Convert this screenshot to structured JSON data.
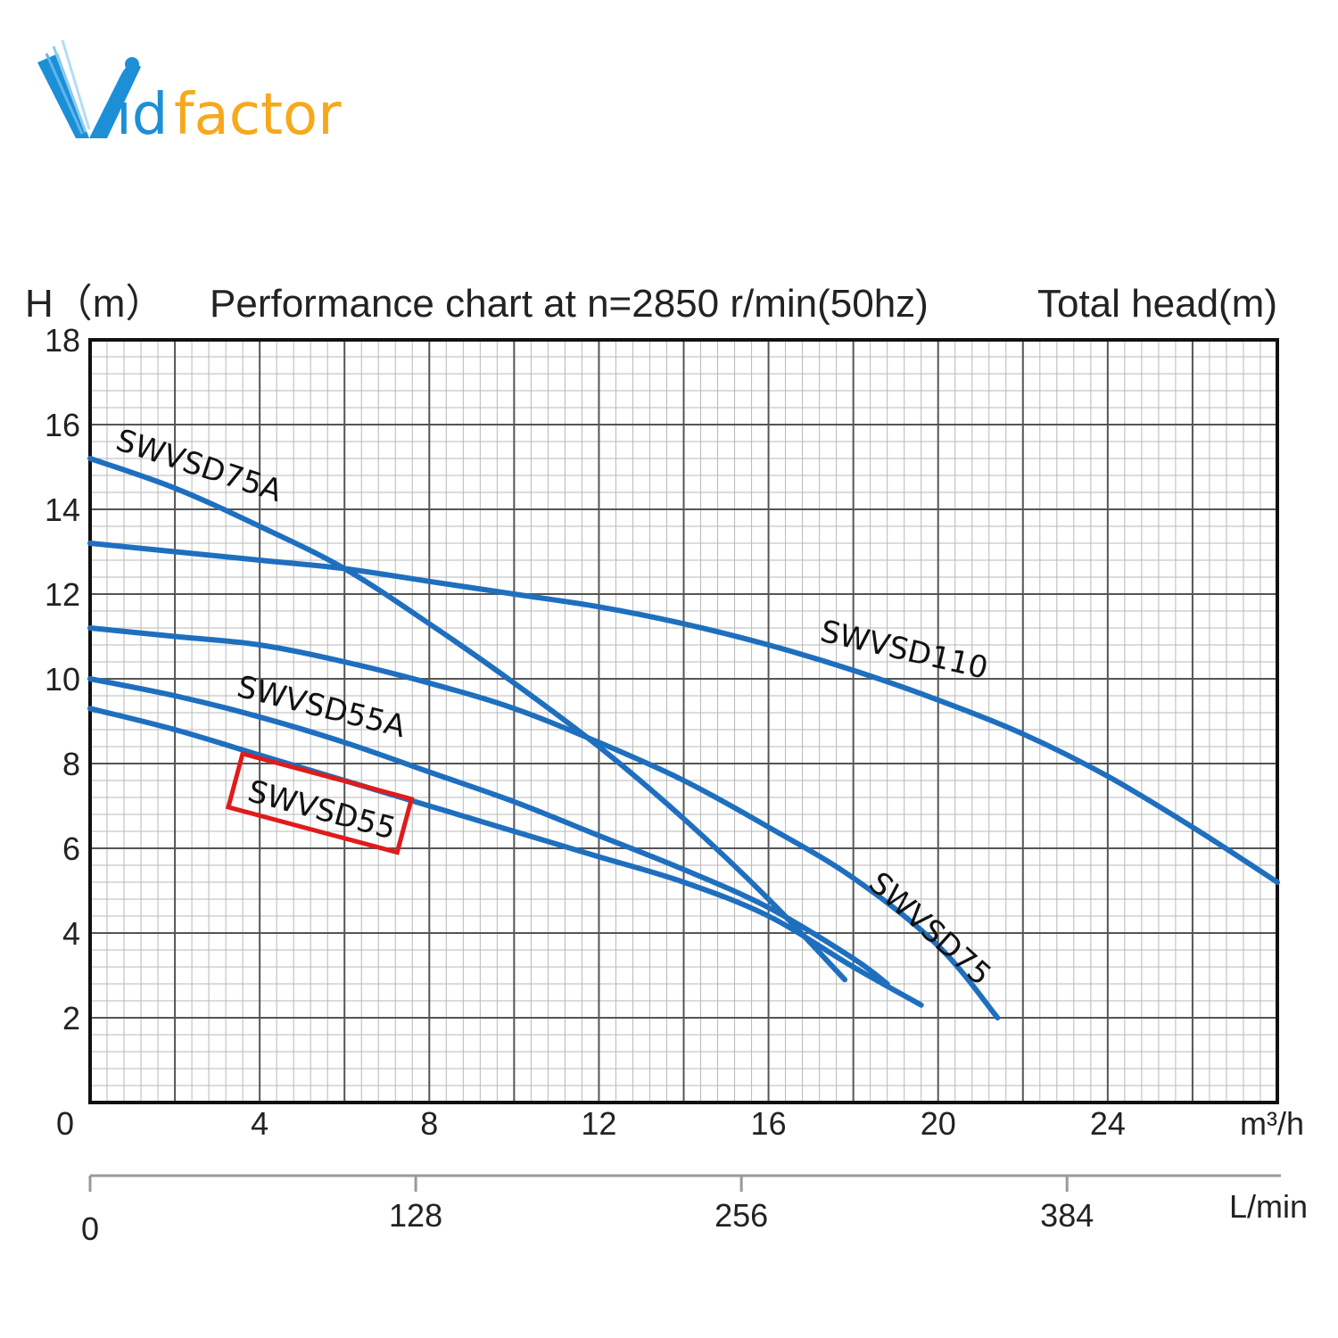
{
  "brand": {
    "logo_text_a": "id",
    "logo_text_b": "factor",
    "primary_color": "#1c8fd6",
    "accent_color": "#f7a81b"
  },
  "chart_data": {
    "type": "line",
    "title": "Performance chart at n=2850 r/min(50hz)",
    "ylabel": "H（m）",
    "ylabel_right": "Total head(m)",
    "xlabel": "m³/h",
    "xlabel_secondary": "L/min",
    "xlim": [
      0,
      28
    ],
    "ylim": [
      0,
      18
    ],
    "x_ticks": [
      0,
      4,
      8,
      12,
      16,
      20,
      24
    ],
    "y_ticks": [
      0,
      2,
      4,
      6,
      8,
      10,
      12,
      14,
      16,
      18
    ],
    "x_ticks_secondary": [
      0,
      128,
      256,
      384
    ],
    "grid": true,
    "line_color": "#1f6fbf",
    "highlight": {
      "series": "SWVSD55",
      "color": "#e01b1b"
    },
    "series": [
      {
        "name": "SWVSD75A",
        "x": [
          0,
          2,
          4,
          6,
          8,
          10,
          12,
          14,
          16,
          17.8
        ],
        "y": [
          15.2,
          14.5,
          13.6,
          12.6,
          11.3,
          9.9,
          8.4,
          6.7,
          4.8,
          2.9
        ]
      },
      {
        "name": "SWVSD110",
        "x": [
          0,
          2,
          4,
          6,
          8,
          10,
          12,
          14,
          16,
          18,
          20,
          22,
          24,
          26,
          28
        ],
        "y": [
          13.2,
          13.0,
          12.8,
          12.6,
          12.3,
          12.0,
          11.7,
          11.3,
          10.8,
          10.2,
          9.5,
          8.7,
          7.7,
          6.5,
          5.2
        ]
      },
      {
        "name": "SWVSD75",
        "x": [
          0,
          2,
          4,
          6,
          8,
          10,
          12,
          14,
          16,
          18,
          20,
          21.4
        ],
        "y": [
          11.2,
          11.0,
          10.8,
          10.4,
          9.9,
          9.3,
          8.5,
          7.6,
          6.5,
          5.3,
          3.7,
          2.0
        ]
      },
      {
        "name": "SWVSD55A",
        "x": [
          0,
          2,
          4,
          6,
          8,
          10,
          12,
          14,
          16,
          18,
          18.8
        ],
        "y": [
          10.0,
          9.6,
          9.1,
          8.5,
          7.8,
          7.1,
          6.3,
          5.5,
          4.6,
          3.4,
          2.8
        ]
      },
      {
        "name": "SWVSD55",
        "x": [
          0,
          2,
          4,
          6,
          8,
          10,
          12,
          14,
          16,
          18,
          19.6
        ],
        "y": [
          9.3,
          8.8,
          8.2,
          7.6,
          7.0,
          6.4,
          5.8,
          5.2,
          4.4,
          3.2,
          2.3
        ]
      }
    ]
  }
}
